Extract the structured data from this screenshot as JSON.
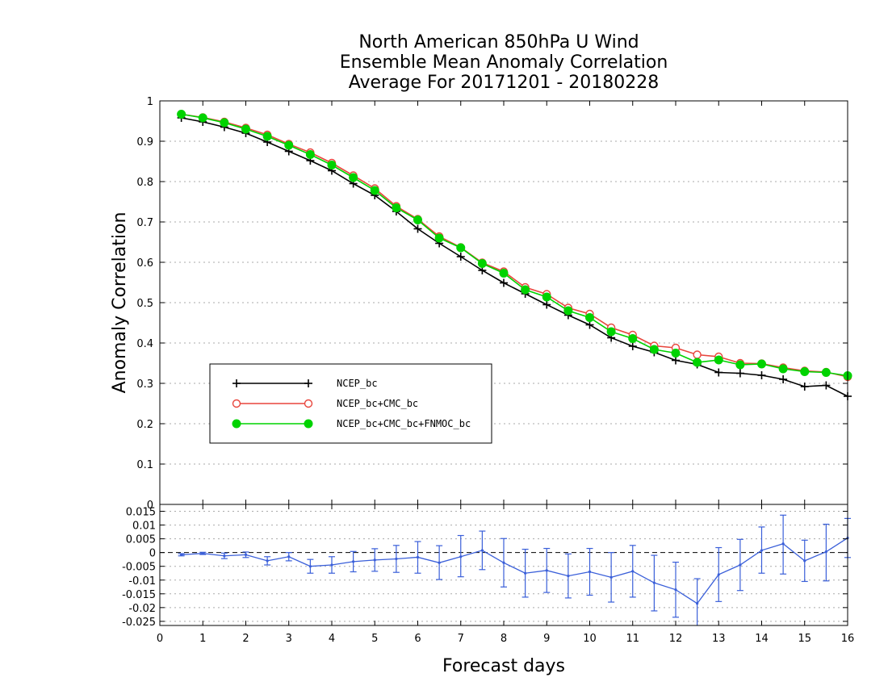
{
  "title": [
    "North American 850hPa U Wind",
    "Ensemble Mean Anomaly Correlation",
    "Average For 20171201 - 20180228"
  ],
  "colors": {
    "black": "#000000",
    "red": "#e8453c",
    "green": "#00d300",
    "blue": "#3a5fd9"
  },
  "chart_data": [
    {
      "type": "line",
      "title": "North American 850hPa U Wind Ensemble Mean Anomaly Correlation Average For 20171201 - 20180228",
      "xlabel": "Forecast days",
      "ylabel": "Anomaly Correlation",
      "xlim": [
        0,
        16
      ],
      "ylim": [
        0,
        1
      ],
      "yticks": [
        "0",
        "0.1",
        "0.2",
        "0.3",
        "0.4",
        "0.5",
        "0.6",
        "0.7",
        "0.8",
        "0.9",
        "1"
      ],
      "xticks": [
        "0",
        "1",
        "2",
        "3",
        "4",
        "5",
        "6",
        "7",
        "8",
        "9",
        "10",
        "11",
        "12",
        "13",
        "14",
        "15",
        "16"
      ],
      "grid": true,
      "legend": "lower-left",
      "x": [
        0.5,
        1,
        1.5,
        2,
        2.5,
        3,
        3.5,
        4,
        4.5,
        5,
        5.5,
        6,
        6.5,
        7,
        7.5,
        8,
        8.5,
        9,
        9.5,
        10,
        10.5,
        11,
        11.5,
        12,
        12.5,
        13,
        13.5,
        14,
        14.5,
        15,
        15.5,
        16
      ],
      "series": [
        {
          "name": "NCEP_bc",
          "marker": "plus",
          "color": "#000000",
          "values": [
            0.958,
            0.948,
            0.935,
            0.92,
            0.898,
            0.875,
            0.852,
            0.827,
            0.795,
            0.766,
            0.726,
            0.683,
            0.647,
            0.614,
            0.58,
            0.549,
            0.522,
            0.495,
            0.469,
            0.445,
            0.413,
            0.392,
            0.377,
            0.357,
            0.347,
            0.327,
            0.325,
            0.32,
            0.31,
            0.292,
            0.295,
            0.268
          ]
        },
        {
          "name": "NCEP_bc+CMC_bc",
          "marker": "open-circle",
          "color": "#e8453c",
          "values": [
            0.967,
            0.959,
            0.948,
            0.933,
            0.916,
            0.893,
            0.872,
            0.846,
            0.815,
            0.783,
            0.739,
            0.707,
            0.664,
            0.637,
            0.599,
            0.577,
            0.538,
            0.521,
            0.487,
            0.472,
            0.438,
            0.42,
            0.393,
            0.388,
            0.371,
            0.366,
            0.35,
            0.349,
            0.339,
            0.331,
            0.328,
            0.316
          ]
        },
        {
          "name": "NCEP_bc+CMC_bc+FNMOC_bc",
          "marker": "filled-circle",
          "color": "#00d300",
          "values": [
            0.967,
            0.958,
            0.946,
            0.93,
            0.912,
            0.89,
            0.867,
            0.841,
            0.81,
            0.778,
            0.735,
            0.705,
            0.66,
            0.636,
            0.597,
            0.573,
            0.532,
            0.514,
            0.48,
            0.463,
            0.428,
            0.411,
            0.384,
            0.375,
            0.352,
            0.358,
            0.346,
            0.348,
            0.336,
            0.329,
            0.327,
            0.319
          ]
        }
      ]
    },
    {
      "type": "line",
      "title": "",
      "xlabel": "Forecast days",
      "ylabel": "",
      "xlim": [
        0,
        16
      ],
      "ylim": [
        -0.0265,
        0.0175
      ],
      "yticks": [
        "0.015",
        "0.01",
        "0.005",
        "0",
        "-0.005",
        "-0.01",
        "-0.015",
        "-0.02",
        "-0.025"
      ],
      "grid": true,
      "zero_line": "dashed",
      "x": [
        0.5,
        1,
        1.5,
        2,
        2.5,
        3,
        3.5,
        4,
        4.5,
        5,
        5.5,
        6,
        6.5,
        7,
        7.5,
        8,
        8.5,
        9,
        9.5,
        10,
        10.5,
        11,
        11.5,
        12,
        12.5,
        13,
        13.5,
        14,
        14.5,
        15,
        15.5,
        16
      ],
      "series": [
        {
          "name": "",
          "color": "#3a5fd9",
          "values": [
            -0.0008,
            -0.0003,
            -0.0012,
            -0.0008,
            -0.003,
            -0.0015,
            -0.005,
            -0.0045,
            -0.0033,
            -0.0027,
            -0.0023,
            -0.0017,
            -0.0037,
            -0.0015,
            0.0008,
            -0.0037,
            -0.0075,
            -0.0065,
            -0.0085,
            -0.007,
            -0.009,
            -0.0068,
            -0.011,
            -0.0135,
            -0.0185,
            -0.008,
            -0.0045,
            0.0008,
            0.0032,
            -0.003,
            0.0003,
            0.0053
          ],
          "error_low": [
            -0.0012,
            -0.0007,
            -0.0022,
            -0.0018,
            -0.0045,
            -0.003,
            -0.0075,
            -0.0075,
            -0.007,
            -0.0068,
            -0.0072,
            -0.0075,
            -0.0098,
            -0.0088,
            -0.0062,
            -0.0125,
            -0.0162,
            -0.0145,
            -0.0165,
            -0.0155,
            -0.018,
            -0.0162,
            -0.0212,
            -0.0235,
            -0.0275,
            -0.0178,
            -0.0138,
            -0.0075,
            -0.0078,
            -0.0105,
            -0.0103,
            -0.0018
          ],
          "error_high": [
            -0.0004,
            0.0001,
            -0.0002,
            0.0002,
            -0.0015,
            0.0,
            -0.0025,
            -0.0015,
            0.0004,
            0.0014,
            0.0026,
            0.004,
            0.0025,
            0.0062,
            0.0078,
            0.0051,
            0.0012,
            0.0015,
            -0.0005,
            0.0015,
            0.0,
            0.0026,
            -0.001,
            -0.0035,
            -0.0095,
            0.0018,
            0.0048,
            0.0093,
            0.0136,
            0.0045,
            0.0103,
            0.0124
          ]
        }
      ]
    }
  ]
}
